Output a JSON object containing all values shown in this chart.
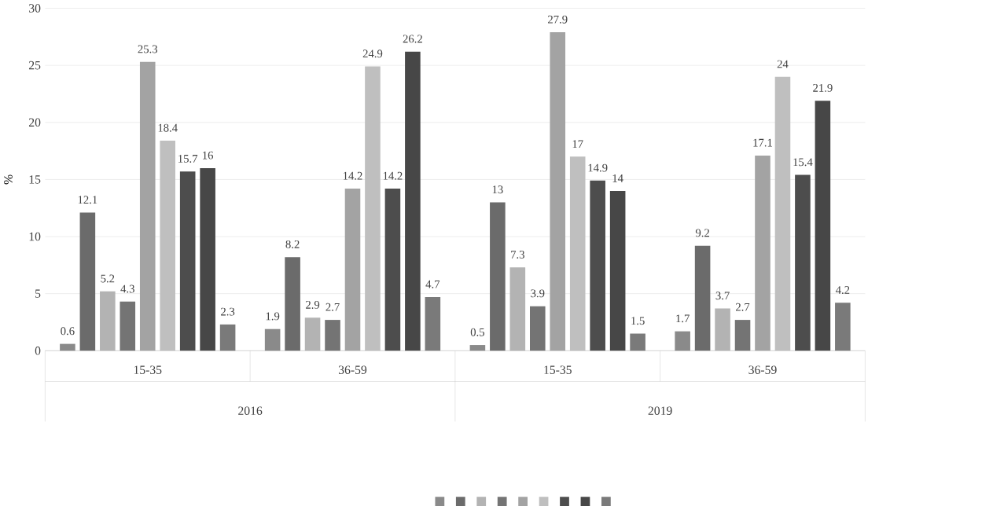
{
  "chart_data": {
    "type": "bar",
    "ylabel": "%",
    "categories": [
      "15-35",
      "36-59",
      "15-35",
      "36-59"
    ],
    "annotations": [
      "2016",
      "2019"
    ],
    "series": [
      {
        "color": "#8a8a8a",
        "values": [
          0.6,
          1.9,
          0.5,
          1.7
        ]
      },
      {
        "color": "#6b6b6b",
        "values": [
          12.1,
          8.2,
          13,
          9.2
        ]
      },
      {
        "color": "#b3b3b3",
        "values": [
          5.2,
          2.9,
          7.3,
          3.7
        ]
      },
      {
        "color": "#747474",
        "values": [
          4.3,
          2.7,
          3.9,
          2.7
        ]
      },
      {
        "color": "#a3a3a3",
        "values": [
          25.3,
          14.2,
          27.9,
          17.1
        ]
      },
      {
        "color": "#bfbfbf",
        "values": [
          18.4,
          24.9,
          17,
          24
        ]
      },
      {
        "color": "#4d4d4d",
        "values": [
          15.7,
          14.2,
          14.9,
          15.4
        ]
      },
      {
        "color": "#474747",
        "values": [
          16,
          26.2,
          14,
          21.9
        ]
      },
      {
        "color": "#7a7a7a",
        "values": [
          2.3,
          4.7,
          1.5,
          4.2
        ]
      }
    ],
    "ylim": [
      0,
      30
    ],
    "yticks": [
      0,
      5,
      10,
      15,
      20,
      25,
      30
    ],
    "grid": "y",
    "data_labels": true
  }
}
